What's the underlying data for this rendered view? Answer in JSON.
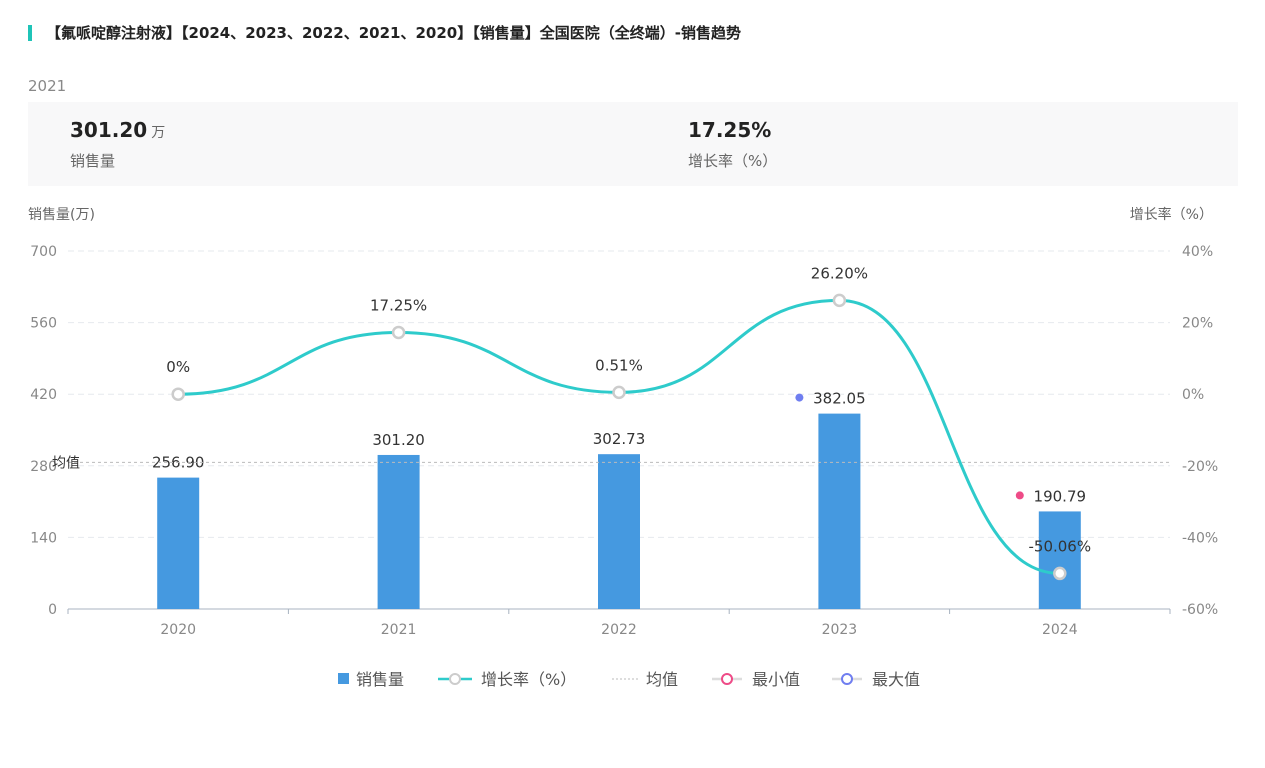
{
  "title": "【氟哌啶醇注射液】【2024、2023、2022、2021、2020】【销售量】全国医院（全终端）-销售趋势",
  "selected_year": "2021",
  "summary": {
    "sales_value": "301.20",
    "sales_unit": "万",
    "sales_label": "销售量",
    "growth_value": "17.25%",
    "growth_label": "增长率（%）"
  },
  "colors": {
    "bar": "#4599e0",
    "line": "#2ecbcb",
    "min": "#ee4b87",
    "max": "#6f7ef0",
    "avg": "#bbbbbb"
  },
  "chart_data": {
    "type": "bar+line",
    "categories": [
      "2020",
      "2021",
      "2022",
      "2023",
      "2024"
    ],
    "series": [
      {
        "name": "销售量",
        "type": "bar",
        "values": [
          256.9,
          301.2,
          302.73,
          382.05,
          190.79
        ],
        "labels": [
          "256.90",
          "301.20",
          "302.73",
          "382.05",
          "190.79"
        ]
      },
      {
        "name": "增长率（%）",
        "type": "line",
        "values": [
          0,
          17.25,
          0.51,
          26.2,
          -50.06
        ],
        "labels": [
          "0%",
          "17.25%",
          "0.51%",
          "26.20%",
          "-50.06%"
        ]
      }
    ],
    "average": {
      "label": "均值",
      "value": 286.73
    },
    "min_index": 4,
    "max_index": 3,
    "ylabel_left": "销售量(万)",
    "ylabel_right": "增长率（%）",
    "ylim_left": [
      0,
      700
    ],
    "yticks_left": [
      "0",
      "140",
      "280",
      "420",
      "560",
      "700"
    ],
    "ylim_right": [
      -60,
      40
    ],
    "yticks_right": [
      "-60%",
      "-40%",
      "-20%",
      "0%",
      "20%",
      "40%"
    ],
    "legend": [
      "销售量",
      "增长率（%）",
      "均值",
      "最小值",
      "最大值"
    ],
    "legend_position": "bottom"
  }
}
